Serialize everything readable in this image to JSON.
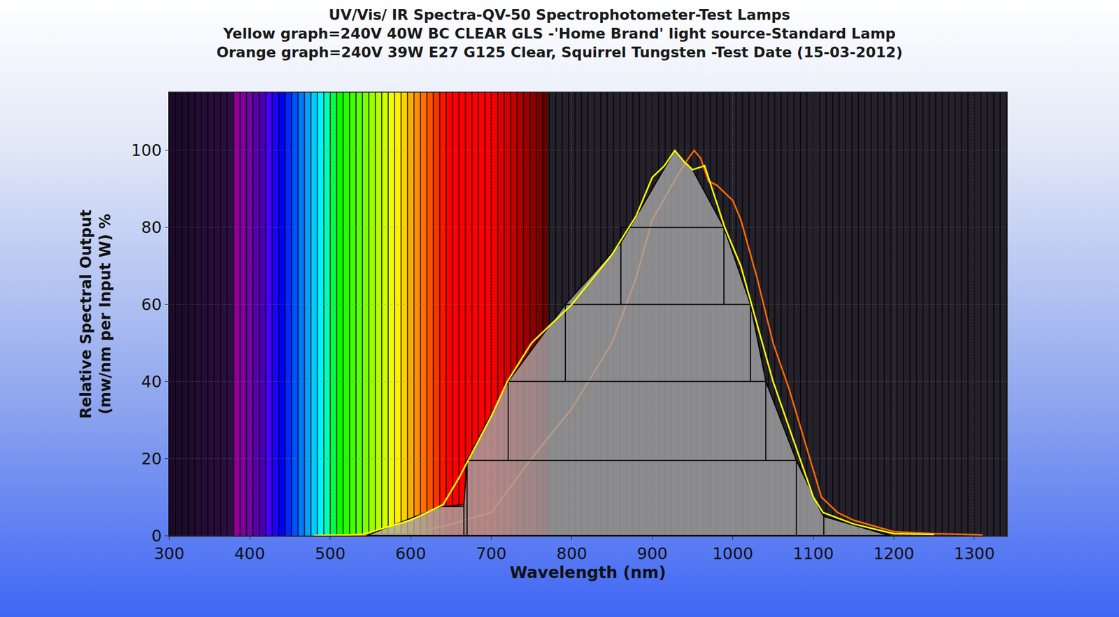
{
  "chart_data": {
    "type": "line",
    "title": [
      "UV/Vis/ IR Spectra-QV-50 Spectrophotometer-Test Lamps",
      "Yellow graph=240V 40W BC CLEAR GLS -'Home Brand' light source-Standard Lamp",
      "Orange graph=240V 39W E27 G125 Clear, Squirrel Tungsten -Test Date (15-03-2012)"
    ],
    "x_label": "Wavelength (nm)",
    "y_label": [
      "Relative Spectral Output",
      "(mw/nm per Input W) %"
    ],
    "xlim": [
      300,
      1340
    ],
    "ylim": [
      0,
      115
    ],
    "xticks": [
      300,
      400,
      500,
      600,
      700,
      800,
      900,
      1000,
      1100,
      1200,
      1300
    ],
    "yticks": [
      0,
      20,
      40,
      60,
      80,
      100
    ],
    "grid": true,
    "spectrum_range": [
      300,
      770
    ],
    "series": [
      {
        "type": "line",
        "color": "#ff6a00",
        "x": [
          480,
          600,
          650,
          700,
          750,
          800,
          850,
          880,
          900,
          930,
          945,
          952,
          960,
          970,
          980,
          1000,
          1010,
          1030,
          1050,
          1070,
          1090,
          1110,
          1130,
          1150,
          1200,
          1250,
          1310
        ],
        "values": [
          0,
          0.5,
          3,
          6,
          20,
          33,
          50,
          67,
          82,
          93,
          98,
          100,
          98,
          92,
          91,
          87,
          82,
          67,
          50,
          38,
          24,
          10,
          6,
          4,
          1,
          0.5,
          0.2
        ]
      },
      {
        "type": "area",
        "color": "#a6a6a6",
        "x": [
          545,
          637,
          666,
          670,
          721,
          792,
          861,
          928,
          950,
          989,
          1022,
          1041,
          1079,
          1110,
          1113,
          1195,
          545
        ],
        "values": [
          0,
          7.5,
          8,
          19.5,
          40,
          60,
          76,
          100,
          95,
          80,
          60,
          40,
          19.5,
          6,
          5,
          0,
          0
        ]
      },
      {
        "type": "line",
        "color": "#000000",
        "x": [
          670,
          1079,
          null,
          721,
          1041,
          null,
          792,
          1022,
          null,
          861,
          989,
          null,
          670,
          670,
          null,
          721,
          721,
          null,
          792,
          792,
          null,
          861,
          861,
          null,
          989,
          989,
          null,
          1022,
          1022,
          null,
          1041,
          1041,
          null,
          1079,
          1079,
          null,
          637,
          666,
          null,
          666,
          666,
          null,
          1113,
          1113,
          null,
          1113,
          1195
        ],
        "values": [
          19.5,
          19.5,
          null,
          40,
          40,
          null,
          60,
          60,
          null,
          80,
          80,
          null,
          0,
          19.5,
          null,
          19.5,
          40,
          null,
          40,
          60,
          null,
          60,
          80,
          null,
          80,
          60,
          null,
          60,
          40,
          null,
          40,
          19.5,
          null,
          19.5,
          0,
          null,
          7.5,
          7.5,
          null,
          0,
          8,
          null,
          0,
          5,
          null,
          5,
          0
        ]
      },
      {
        "type": "line",
        "color": "#ffff00",
        "x": [
          480,
          540,
          600,
          640,
          660,
          700,
          720,
          750,
          800,
          850,
          880,
          900,
          915,
          928,
          940,
          950,
          965,
          990,
          1010,
          1030,
          1050,
          1080,
          1100,
          1112,
          1150,
          1200,
          1250
        ],
        "values": [
          0,
          0.3,
          4,
          8,
          15,
          31,
          40,
          50,
          60,
          73,
          83,
          93,
          96,
          100,
          97,
          95,
          96,
          80,
          70,
          55,
          40,
          22,
          10,
          6,
          3,
          0.5,
          0.3
        ]
      }
    ]
  }
}
